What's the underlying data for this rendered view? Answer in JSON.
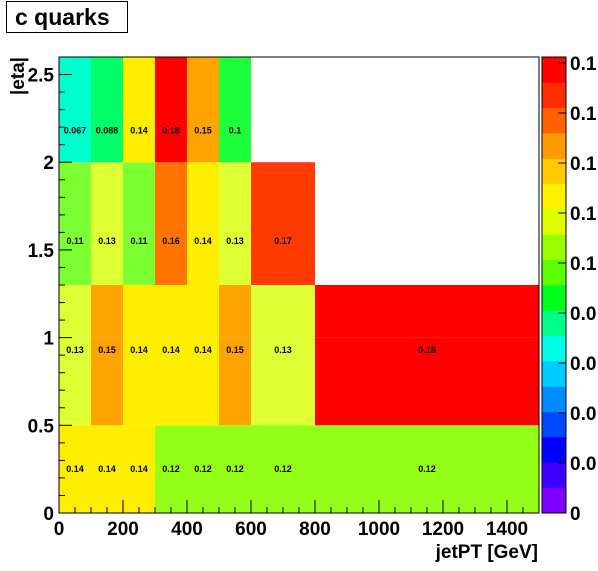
{
  "title": "c quarks",
  "chart_data": {
    "type": "heatmap",
    "title": "c quarks",
    "xlabel": "jetPT [GeV]",
    "ylabel": "|eta|",
    "xlim": [
      0,
      1500
    ],
    "ylim": [
      0,
      2.6
    ],
    "x_ticks": [
      0,
      200,
      400,
      600,
      800,
      1000,
      1200,
      1400
    ],
    "x_tick_labels": [
      "0",
      "200",
      "400",
      "600",
      "800",
      "1000",
      "1200",
      "1400"
    ],
    "y_ticks": [
      0,
      0.5,
      1,
      1.5,
      2,
      2.5
    ],
    "y_tick_labels": [
      "0",
      "0.5",
      "1",
      "1.5",
      "2",
      "2.5"
    ],
    "zlim": [
      0,
      0.18
    ],
    "palette_labels": [
      "0",
      "0.0",
      "0.0",
      "0.0",
      "0.0",
      "0.1",
      "0.1",
      "0.1",
      "0.1",
      "0.1"
    ],
    "eta_bins": [
      {
        "ymin": 0,
        "ymax": 0.5,
        "cells": [
          {
            "xmin": 0,
            "xmax": 100,
            "value": 0.14,
            "label": "0.14"
          },
          {
            "xmin": 100,
            "xmax": 200,
            "value": 0.14,
            "label": "0.14"
          },
          {
            "xmin": 200,
            "xmax": 300,
            "value": 0.138,
            "label": "0.14"
          },
          {
            "xmin": 300,
            "xmax": 400,
            "value": 0.12,
            "label": "0.12"
          },
          {
            "xmin": 400,
            "xmax": 500,
            "value": 0.12,
            "label": "0.12"
          },
          {
            "xmin": 500,
            "xmax": 600,
            "value": 0.117,
            "label": "0.12"
          },
          {
            "xmin": 600,
            "xmax": 800,
            "value": 0.117,
            "label": "0.12"
          },
          {
            "xmin": 800,
            "xmax": 1500,
            "value": 0.12,
            "label": "0.12"
          }
        ]
      },
      {
        "ymin": 0.5,
        "ymax": 1.0,
        "cells": [
          {
            "xmin": 0,
            "xmax": 100,
            "value": 0.127,
            "label": "0.13"
          },
          {
            "xmin": 100,
            "xmax": 200,
            "value": 0.15,
            "label": "0.15"
          },
          {
            "xmin": 200,
            "xmax": 300,
            "value": 0.14,
            "label": "0.14"
          },
          {
            "xmin": 300,
            "xmax": 400,
            "value": 0.14,
            "label": "0.14"
          },
          {
            "xmin": 400,
            "xmax": 500,
            "value": 0.14,
            "label": "0.14"
          },
          {
            "xmin": 500,
            "xmax": 600,
            "value": 0.15,
            "label": "0.15"
          },
          {
            "xmin": 600,
            "xmax": 800,
            "value": 0.132,
            "label": "0.13"
          },
          {
            "xmin": 800,
            "xmax": 1500,
            "value": 0.176,
            "label": "0.18"
          }
        ]
      },
      {
        "ymin": 1.0,
        "ymax": 1.3,
        "cells": [
          {
            "xmin": 0,
            "xmax": 100,
            "value": 0.127,
            "label": "0.13"
          },
          {
            "xmin": 100,
            "xmax": 200,
            "value": 0.15,
            "label": "0.15"
          },
          {
            "xmin": 200,
            "xmax": 300,
            "value": 0.14,
            "label": "0.14"
          },
          {
            "xmin": 300,
            "xmax": 400,
            "value": 0.14,
            "label": "0.14"
          },
          {
            "xmin": 400,
            "xmax": 500,
            "value": 0.14,
            "label": "0.14"
          },
          {
            "xmin": 500,
            "xmax": 600,
            "value": 0.15,
            "label": "0.15"
          },
          {
            "xmin": 600,
            "xmax": 800,
            "value": 0.132,
            "label": "0.13"
          },
          {
            "xmin": 800,
            "xmax": 1500,
            "value": 0.176,
            "label": "0.18"
          }
        ]
      },
      {
        "ymin": 1.3,
        "ymax": 2.0,
        "cells": [
          {
            "xmin": 0,
            "xmax": 100,
            "value": 0.115,
            "label": "0.11"
          },
          {
            "xmin": 100,
            "xmax": 200,
            "value": 0.132,
            "label": "0.13"
          },
          {
            "xmin": 200,
            "xmax": 300,
            "value": 0.115,
            "label": "0.11"
          },
          {
            "xmin": 300,
            "xmax": 400,
            "value": 0.158,
            "label": "0.16"
          },
          {
            "xmin": 400,
            "xmax": 500,
            "value": 0.14,
            "label": "0.14"
          },
          {
            "xmin": 500,
            "xmax": 600,
            "value": 0.132,
            "label": "0.13"
          },
          {
            "xmin": 600,
            "xmax": 800,
            "value": 0.168,
            "label": "0.17"
          }
        ]
      },
      {
        "ymin": 2.0,
        "ymax": 2.6,
        "cells": [
          {
            "xmin": 0,
            "xmax": 100,
            "value": 0.067,
            "label": "0.067"
          },
          {
            "xmin": 100,
            "xmax": 200,
            "value": 0.088,
            "label": "0.088"
          },
          {
            "xmin": 200,
            "xmax": 300,
            "value": 0.14,
            "label": "0.14"
          },
          {
            "xmin": 300,
            "xmax": 400,
            "value": 0.18,
            "label": "0.18"
          },
          {
            "xmin": 400,
            "xmax": 500,
            "value": 0.15,
            "label": "0.15"
          },
          {
            "xmin": 500,
            "xmax": 600,
            "value": 0.1,
            "label": "0.1"
          }
        ]
      }
    ]
  },
  "palette_colors": [
    "#7f00ff",
    "#3c00ff",
    "#0000ff",
    "#0047ff",
    "#008bff",
    "#00ccff",
    "#00ffe6",
    "#00ff8a",
    "#00ff1a",
    "#5cff00",
    "#99ff00",
    "#ddff00",
    "#fff000",
    "#ffca00",
    "#ff9a00",
    "#ff6200",
    "#ff2d00",
    "#ff0000"
  ],
  "cell_colors": {
    "0.067": "#00ffcf",
    "0.088": "#00ff6a",
    "0.1": "#1cff3a",
    "0.11": "#7cff33",
    "0.12": "#93ff17",
    "0.13": "#ddff33",
    "0.14": "#ffed00",
    "0.15": "#ffa300",
    "0.16": "#ff7300",
    "0.17": "#ff3a00",
    "0.18": "#ff0000"
  }
}
